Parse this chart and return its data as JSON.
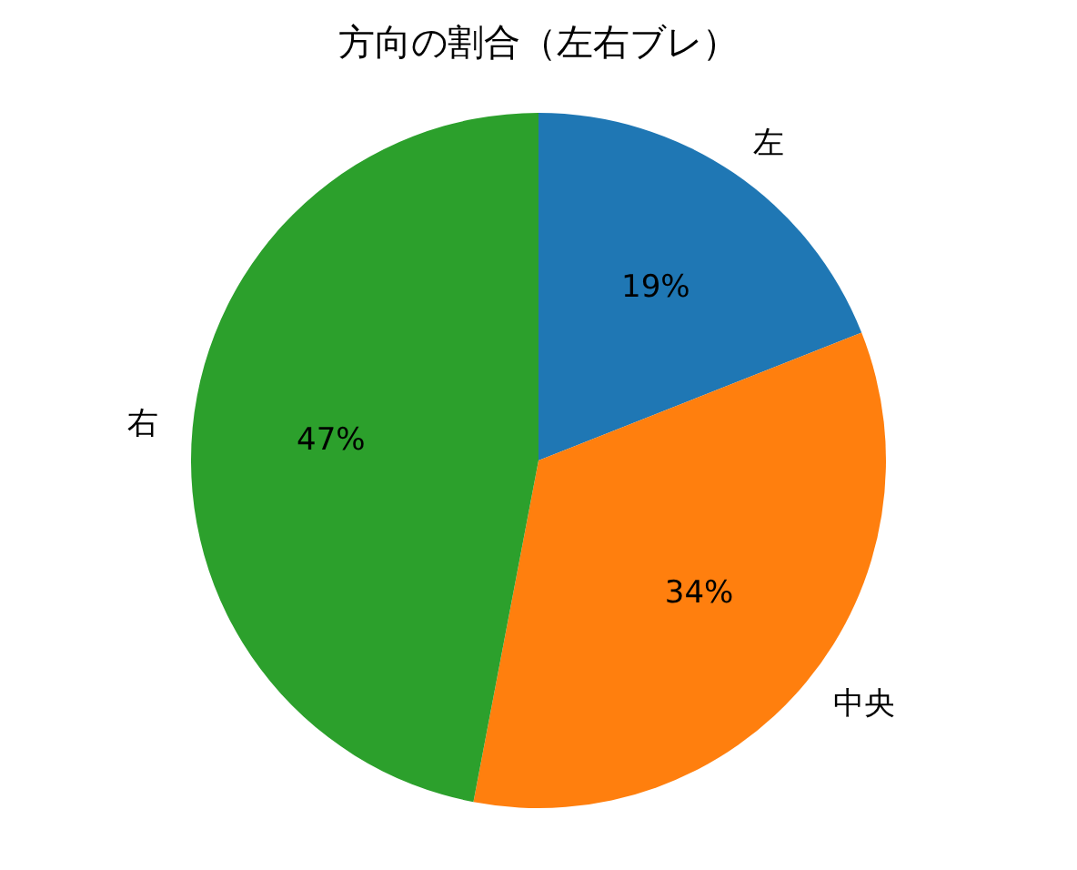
{
  "chart_data": {
    "type": "pie",
    "title": "方向の割合（左右ブレ）",
    "categories": [
      "左",
      "中央",
      "右"
    ],
    "values": [
      19,
      34,
      47
    ],
    "colors": [
      "#1f77b4",
      "#ff7f0e",
      "#2ca02c"
    ],
    "value_labels": [
      "19%",
      "34%",
      "47%"
    ]
  }
}
